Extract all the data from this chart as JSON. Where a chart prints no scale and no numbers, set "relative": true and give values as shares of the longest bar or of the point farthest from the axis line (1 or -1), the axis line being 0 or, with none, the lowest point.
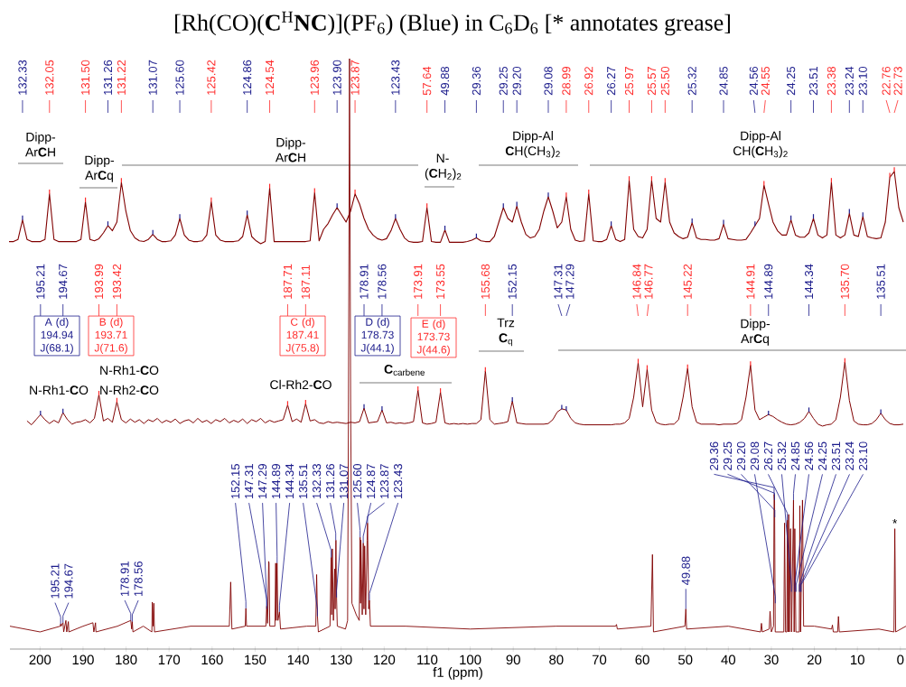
{
  "chart_data": [
    {
      "type": "line",
      "title": "[Rh(CO)(**C**$^{H}$**NC**)](PF$_{6}$) (Blue) in C$_{6}$D$_{6}$ [* annotates grease]",
      "relative": true,
      "categories": [
        null,
        null,
        null,
        null,
        null,
        null,
        null,
        null,
        null,
        null,
        null,
        null,
        null,
        null,
        null,
        null,
        null,
        null,
        null,
        null,
        null,
        null,
        null,
        null,
        null,
        null,
        null,
        null,
        null,
        null,
        null,
        null,
        null,
        null,
        null,
        null,
        null,
        null,
        null,
        null,
        null,
        null,
        null,
        null,
        null,
        null,
        null,
        null,
        null,
        null,
        null,
        null,
        null,
        null,
        null,
        null,
        null,
        null,
        null,
        null,
        null,
        null,
        null,
        null,
        null,
        null,
        null,
        null,
        null,
        null,
        null,
        null,
        null,
        null,
        null,
        null,
        null,
        null,
        null,
        null,
        null,
        null,
        null,
        null,
        null,
        null,
        null,
        null,
        null,
        null,
        null,
        null,
        null,
        null,
        null,
        null,
        null,
        null,
        null,
        null,
        null,
        null,
        null,
        null,
        null,
        null,
        null,
        null,
        null,
        null,
        null,
        null,
        null,
        null,
        null,
        null,
        null,
        null,
        null,
        null,
        null,
        null,
        null,
        null,
        null,
        null,
        null,
        null,
        null,
        null,
        null,
        null,
        null,
        null,
        null,
        null,
        null,
        null,
        null,
        null,
        null,
        null,
        null,
        null,
        null,
        null,
        null,
        null,
        null,
        null,
        null,
        null,
        null,
        null,
        null,
        null,
        null,
        null,
        null,
        null,
        null,
        null,
        null,
        null,
        null,
        null,
        null,
        null,
        null,
        null,
        null,
        null,
        null,
        null,
        null,
        null,
        null,
        null,
        null,
        null,
        null,
        null,
        null,
        null,
        null,
        null,
        null,
        null,
        null,
        null,
        null,
        null,
        null,
        null,
        null,
        null,
        null,
        null,
        null,
        null
      ],
      "series": [
        {
          "color": "#800000",
          "values": [
            0.03,
            0.03,
            0.06,
            0.33,
            0.06,
            0.03,
            0.03,
            0.03,
            0.06,
            0.69,
            0.06,
            0.03,
            0.03,
            0.03,
            0.03,
            0.03,
            0.06,
            0.58,
            0.06,
            0.04,
            0.07,
            0.15,
            0.25,
            0.18,
            0.3,
            0.85,
            0.45,
            0.18,
            0.08,
            0.04,
            0.03,
            0.06,
            0.13,
            0.06,
            0.03,
            0.03,
            0.04,
            0.12,
            0.35,
            0.12,
            0.05,
            0.03,
            0.03,
            0.04,
            0.12,
            0.58,
            0.12,
            0.05,
            0.03,
            0.03,
            0.03,
            0.04,
            0.1,
            0.4,
            0.1,
            0.04,
            0,
            0.03,
            0.77,
            0.03,
            0.03,
            0.03,
            0.03,
            0.03,
            0.03,
            0.03,
            0.03,
            0.04,
            0.71,
            0.04,
            0.2,
            0.28,
            0.4,
            0.5,
            0.4,
            0.3,
            0.45,
            0.69,
            0.55,
            0.35,
            0.2,
            0.12,
            0.07,
            0.05,
            0.07,
            0.18,
            0.35,
            0.2,
            0.08,
            0.03,
            0.02,
            0.02,
            0.03,
            0.5,
            0.03,
            0.02,
            0.02,
            0.19,
            0.02,
            0.02,
            0.02,
            0.02,
            0.03,
            0.05,
            0.08,
            0.04,
            0.03,
            0.03,
            0.1,
            0.3,
            0.5,
            0.35,
            0.3,
            0.52,
            0.3,
            0.13,
            0.08,
            0.1,
            0.2,
            0.45,
            0.65,
            0.45,
            0.22,
            0.3,
            0.65,
            0.2,
            0.05,
            0.03,
            0.04,
            0.69,
            0.04,
            0.03,
            0.03,
            0.06,
            0.25,
            0.06,
            0.03,
            0.06,
            0.875,
            0.2,
            0.1,
            0.08,
            0.2,
            0.875,
            0.35,
            0.3,
            0.85,
            0.3,
            0.15,
            0.1,
            0.07,
            0.09,
            0.29,
            0.08,
            0.06,
            0.06,
            0.05,
            0.05,
            0.07,
            0.27,
            0.07,
            0.06,
            0.05,
            0.05,
            0.06,
            0.15,
            0.25,
            0.35,
            0.81,
            0.55,
            0.3,
            0.18,
            0.12,
            0.12,
            0.33,
            0.12,
            0.09,
            0.09,
            0.15,
            0.35,
            0.12,
            0.08,
            0.12,
            0.85,
            0.12,
            0.08,
            0.12,
            0.42,
            0.12,
            0.1,
            0.375,
            0.1,
            0.08,
            0.07,
            0.08,
            0.3,
            0.92,
            1.0,
            0.5,
            0.3
          ]
        }
      ],
      "annotations": [
        "132.33",
        "132.05",
        "131.50",
        "131.26",
        "131.22",
        "131.07",
        "125.60",
        "125.42",
        "124.86",
        "124.54",
        "123.96",
        "123.90",
        "123.87",
        "123.43",
        "57.64",
        "49.88",
        "29.36",
        "29.25",
        "29.20",
        "29.08",
        "28.99",
        "26.92",
        "26.27",
        "25.97",
        "25.57",
        "25.50",
        "25.32",
        "24.85",
        "24.56",
        "24.55",
        "24.25",
        "23.51",
        "23.38",
        "23.24",
        "23.10",
        "22.76",
        "22.73",
        "Dipp- Ar**C**H",
        "Dipp- Ar**C**q",
        "Dipp- Ar**C**H",
        "N- (**C**H$_{2}$)$_{2}$",
        "Dipp-Al **C**H(CH$_{3}$)$_{2}$",
        "Dipp-Al CH(**C**H$_{3}$)$_{2}$"
      ]
    },
    {
      "type": "line",
      "relative": true,
      "categories": [
        null,
        null,
        null,
        null,
        null,
        null,
        null,
        null,
        null,
        null,
        null,
        null,
        null,
        null,
        null,
        null,
        null,
        null,
        null,
        null,
        null,
        null,
        null,
        null,
        null,
        null,
        null,
        null,
        null,
        null,
        null,
        null,
        null,
        null,
        null,
        null,
        null,
        null,
        null,
        null,
        null,
        null,
        null,
        null,
        null,
        null,
        null,
        null,
        null,
        null,
        null,
        null,
        null,
        null,
        null,
        null,
        null,
        null,
        null,
        null,
        null,
        null,
        null,
        null,
        null,
        null,
        null,
        null,
        null,
        null,
        null,
        null,
        null,
        null,
        null,
        null,
        null,
        null,
        null,
        null,
        null,
        null,
        null,
        null,
        null,
        null,
        null,
        null,
        null,
        null,
        null,
        null,
        null,
        null,
        null,
        null,
        null,
        null,
        null,
        null,
        null,
        null,
        null,
        null,
        null,
        null,
        null,
        null,
        null,
        null,
        null,
        null,
        null,
        null,
        null,
        null,
        null,
        null,
        null,
        null,
        null,
        null,
        null,
        null,
        null,
        null,
        null,
        null,
        null,
        null,
        null,
        null,
        null,
        null,
        null,
        null,
        null,
        null,
        null,
        null,
        null,
        null,
        null,
        null,
        null,
        null,
        null,
        null,
        null,
        null,
        null,
        null,
        null,
        null,
        null,
        null,
        null,
        null,
        null,
        null,
        null,
        null,
        null,
        null,
        null,
        null,
        null,
        null,
        null,
        null,
        null,
        null,
        null,
        null,
        null,
        null,
        null,
        null,
        null,
        null,
        null,
        null,
        null,
        null,
        null,
        null,
        null,
        null,
        null,
        null,
        null,
        null,
        null,
        null,
        null,
        null,
        null,
        null,
        null,
        null
      ],
      "series": [
        {
          "color": "#800000",
          "values": [
            null,
            null,
            null,
            null,
            0.08,
            0.02,
            0.1,
            0.18,
            0.1,
            0.04,
            0.09,
            0.05,
            0.21,
            0.1,
            0.03,
            0.06,
            0.07,
            0.1,
            0.05,
            0.12,
            0.49,
            0.08,
            0.12,
            0.06,
            0.38,
            0.1,
            0.05,
            0.11,
            0.06,
            0.1,
            0.04,
            0.1,
            0.07,
            0.12,
            0.05,
            0.09,
            0.06,
            0.11,
            0.04,
            0.08,
            0.1,
            0.05,
            0.12,
            0.06,
            0.09,
            0.04,
            0.1,
            0.07,
            0.12,
            0.05,
            0.09,
            0.06,
            0.11,
            0.04,
            0.1,
            0.07,
            0.12,
            0.05,
            0.09,
            0.06,
            0.08,
            0.1,
            0.33,
            0.07,
            0.11,
            0.06,
            0.35,
            0.08,
            0.1,
            0.05,
            0.04,
            0.07,
            0.05,
            0.06,
            0.05,
            0.04,
            0.06,
            0.05,
            0.07,
            0.28,
            0.05,
            0.06,
            0.07,
            0.25,
            0.05,
            0.06,
            0.04,
            0.05,
            0.04,
            0.05,
            0.07,
            0.56,
            0.05,
            0.03,
            0.04,
            0.06,
            0.53,
            0.05,
            0.03,
            0.04,
            0.03,
            0.04,
            0.03,
            0.04,
            0.04,
            0.1,
            0.86,
            0.1,
            0.03,
            0.04,
            0.05,
            0.07,
            0.39,
            0.05,
            0.04,
            0.03,
            0.03,
            0.03,
            0.03,
            0.03,
            0.04,
            0.1,
            0.22,
            0.27,
            0.25,
            0.12,
            0.05,
            0.03,
            0.02,
            0.02,
            0.02,
            0.02,
            0.02,
            0.02,
            0.02,
            0.03,
            0.03,
            0.05,
            0.12,
            0.45,
            0.99,
            0.3,
            0.89,
            0.25,
            0.06,
            0.03,
            0.02,
            0.03,
            0.03,
            0.1,
            0.45,
            0.9,
            0.3,
            0.06,
            0.03,
            0.03,
            0.03,
            0.03,
            0.02,
            0.03,
            0.03,
            0.03,
            0.04,
            0.1,
            0.45,
            0.95,
            0.25,
            0.1,
            0.14,
            0.18,
            0.15,
            0.1,
            0.06,
            0.03,
            0.02,
            0.03,
            0.06,
            0.12,
            0.23,
            0.12,
            0.03,
            0,
            0.02,
            0.03,
            0.1,
            0.45,
            1.0,
            0.4,
            0.08,
            0.03,
            0.02,
            0.02,
            0.04,
            0.1,
            0.2,
            0.1,
            0.04,
            0.02,
            0.02,
            0.03
          ]
        }
      ],
      "annotations": [
        "195.21",
        "194.67",
        "193.99",
        "193.42",
        "187.71",
        "187.11",
        "178.91",
        "178.56",
        "173.91",
        "173.55",
        "155.68",
        "152.15",
        "147.31",
        "147.29",
        "146.84",
        "146.77",
        "145.22",
        "144.91",
        "144.89",
        "144.34",
        "135.70",
        "135.51",
        "A (d) 194.94 J(68.1)",
        "B (d) 193.71 J(71.6)",
        "C (d) 187.41 J(75.8)",
        "D (d) 178.73 J(44.1)",
        "E (d) 173.73 J(44.6)",
        "N-Rh1-**C**O",
        "N-Rh1-**C**O",
        "N-Rh2-**C**O",
        "Cl-Rh2-**C**O",
        "**C**$_{carbene}$",
        "Trz **C**$_{q}$",
        "Dipp- Ar**C**q"
      ]
    },
    {
      "type": "line",
      "relative": true,
      "xlabel": "f1 (ppm)",
      "xlim": [
        207,
        -1.3
      ],
      "xticks": [
        200,
        190,
        180,
        170,
        160,
        150,
        140,
        130,
        120,
        110,
        100,
        90,
        80,
        70,
        60,
        50,
        40,
        30,
        20,
        10,
        0
      ],
      "series": [
        {
          "color": "#800000",
          "x": [
            207,
            200,
            195.3,
            195.21,
            195.1,
            194.67,
            194.5,
            193.99,
            193.8,
            193.42,
            193.3,
            190,
            187.71,
            187.5,
            187.11,
            187,
            182,
            178.91,
            178.7,
            178.56,
            178.4,
            176,
            174,
            173.91,
            173.7,
            173.55,
            173.4,
            165,
            156,
            155.68,
            155.4,
            152.3,
            152.15,
            152,
            148,
            147.5,
            147.31,
            147.1,
            146.84,
            146.77,
            146.6,
            145.4,
            145.22,
            145.1,
            144.91,
            144.7,
            144.34,
            144.1,
            138,
            135.9,
            135.7,
            135.51,
            135.3,
            132.6,
            132.33,
            132.2,
            132.05,
            131.8,
            131.5,
            131.4,
            131.22,
            131.07,
            130.9,
            129,
            128.5,
            128.3,
            128.06,
            127.8,
            127.5,
            126.5,
            125.8,
            125.6,
            125.5,
            125.42,
            125.1,
            124.86,
            124.7,
            124.54,
            124.3,
            123.96,
            123.87,
            123.6,
            123.43,
            123.2,
            115,
            100,
            80,
            66.2,
            66,
            65.8,
            58,
            57.64,
            57.4,
            50.1,
            49.88,
            49.7,
            40,
            32.5,
            32.3,
            32.1,
            30.5,
            30.3,
            30,
            29.5,
            29.36,
            29.25,
            29.1,
            27.1,
            26.92,
            26.7,
            26.4,
            26.27,
            26.1,
            25.97,
            25.8,
            25.57,
            25.5,
            25.3,
            24.85,
            24.7,
            24.55,
            24.3,
            23.5,
            23.38,
            23.2,
            22.76,
            22.5,
            20,
            16,
            15.8,
            15.6,
            14.6,
            14.4,
            14.2,
            5,
            1.5,
            1.3,
            1.1,
            -1.3
          ],
          "values": [
            0.01,
            0,
            0.01,
            0.014,
            0.01,
            0.016,
            0,
            0.02,
            0,
            0.018,
            0,
            0.01,
            0.016,
            0,
            0.016,
            0,
            0.01,
            0.02,
            0.005,
            0.018,
            0,
            0.01,
            0,
            0.052,
            0.01,
            0.05,
            0,
            0.01,
            0.01,
            0.087,
            0.005,
            0.01,
            0.041,
            0.01,
            0.01,
            0.01,
            0.045,
            0.015,
            0.123,
            0.12,
            0.01,
            0.01,
            0.12,
            0.02,
            0.12,
            0.02,
            0.035,
            0.005,
            0.01,
            0.01,
            0.1,
            0.027,
            0,
            0.01,
            0.13,
            0.03,
            0.145,
            0.02,
            0.11,
            0.04,
            0.16,
            0.06,
            0.01,
            0.005,
            0.02,
            0.4,
            1,
            0.4,
            0.05,
            0.03,
            0.02,
            0.165,
            0.05,
            0.16,
            0.03,
            0.155,
            0.04,
            0.15,
            0.03,
            0.16,
            0.19,
            0.04,
            0.055,
            0.01,
            0.01,
            0.005,
            0.01,
            0.01,
            0.013,
            0.005,
            0.01,
            0.135,
            0,
            0.01,
            0.04,
            0.005,
            0.01,
            0,
            0.015,
            0,
            0.005,
            0.036,
            0,
            0.01,
            0.24,
            0.23,
            0,
            0,
            0.19,
            0,
            0,
            0.195,
            0,
            0.205,
            0,
            0.18,
            0.18,
            0,
            0.23,
            0,
            0.18,
            0,
            0,
            0.22,
            0,
            0.23,
            0.01,
            0.01,
            0.005,
            0.012,
            0,
            0,
            0.027,
            0,
            0.005,
            0,
            0.18,
            0,
            0.01
          ]
        }
      ],
      "annotations": [
        {
          "text": "195.21",
          "x": 195.21,
          "y": 0.014
        },
        {
          "text": "194.67",
          "x": 194.67,
          "y": 0.016
        },
        {
          "text": "178.91",
          "x": 178.91,
          "y": 0.02
        },
        {
          "text": "178.56",
          "x": 178.56,
          "y": 0.018
        },
        {
          "text": "152.15",
          "x": 152.15,
          "y": 0.041
        },
        {
          "text": "147.31",
          "x": 147.31,
          "y": 0.045
        },
        {
          "text": "147.29",
          "x": 147.29,
          "y": 0.04
        },
        {
          "text": "144.89",
          "x": 144.89,
          "y": 0.12
        },
        {
          "text": "144.34",
          "x": 144.34,
          "y": 0.035
        },
        {
          "text": "135.51",
          "x": 135.51,
          "y": 0.027
        },
        {
          "text": "132.33",
          "x": 132.33,
          "y": 0.13
        },
        {
          "text": "131.26",
          "x": 131.26,
          "y": 0.16
        },
        {
          "text": "131.07",
          "x": 131.07,
          "y": 0.06
        },
        {
          "text": "125.60",
          "x": 125.6,
          "y": 0.165
        },
        {
          "text": "124.87",
          "x": 124.87,
          "y": 0.155
        },
        {
          "text": "123.87",
          "x": 123.87,
          "y": 0.19
        },
        {
          "text": "123.43",
          "x": 123.43,
          "y": 0.055
        },
        {
          "text": "49.88",
          "x": 49.88,
          "y": 0.04
        },
        {
          "text": "29.36",
          "x": 29.36,
          "y": 0.24
        },
        {
          "text": "29.25",
          "x": 29.25,
          "y": 0.23
        },
        {
          "text": "29.20",
          "x": 29.2,
          "y": 0.2
        },
        {
          "text": "29.08",
          "x": 29.08,
          "y": 0.05
        },
        {
          "text": "26.27",
          "x": 26.27,
          "y": 0.195
        },
        {
          "text": "25.32",
          "x": 25.32,
          "y": 0.07
        },
        {
          "text": "24.85",
          "x": 24.85,
          "y": 0.23
        },
        {
          "text": "24.56",
          "x": 24.56,
          "y": 0.07
        },
        {
          "text": "24.25",
          "x": 24.25,
          "y": 0.07
        },
        {
          "text": "23.51",
          "x": 23.51,
          "y": 0.07
        },
        {
          "text": "23.24",
          "x": 23.24,
          "y": 0.07
        },
        {
          "text": "23.10",
          "x": 23.1,
          "y": 0.07
        },
        {
          "text": "*",
          "x": 1.3,
          "y": 0.18
        }
      ]
    }
  ]
}
